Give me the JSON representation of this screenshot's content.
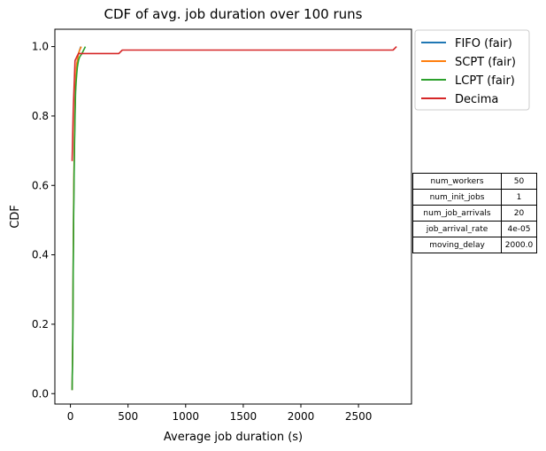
{
  "chart_data": {
    "type": "line",
    "title": "CDF of avg. job duration over 100 runs",
    "xlabel": "Average job duration (s)",
    "ylabel": "CDF",
    "xlim": [
      -135,
      2960
    ],
    "ylim": [
      -0.03,
      1.05
    ],
    "xticks": [
      0,
      500,
      1000,
      1500,
      2000,
      2500
    ],
    "yticks": [
      0.0,
      0.2,
      0.4,
      0.6,
      0.8,
      1.0
    ],
    "ytick_labels": [
      "0.0",
      "0.2",
      "0.4",
      "0.6",
      "0.8",
      "1.0"
    ],
    "grid": false,
    "legend_position": "outside top-right",
    "series": [
      {
        "name": "FIFO (fair)",
        "color": "#1f77b4",
        "x": [
          15,
          20,
          25,
          28,
          30,
          35,
          40,
          45,
          50,
          55,
          60,
          65,
          70,
          80,
          90
        ],
        "y": [
          0.01,
          0.15,
          0.4,
          0.52,
          0.6,
          0.72,
          0.82,
          0.88,
          0.92,
          0.94,
          0.96,
          0.97,
          0.98,
          0.99,
          1.0
        ]
      },
      {
        "name": "SCPT (fair)",
        "color": "#ff7f0e",
        "x": [
          15,
          20,
          25,
          28,
          30,
          35,
          40,
          45,
          50,
          55,
          60,
          65,
          70,
          80,
          95
        ],
        "y": [
          0.01,
          0.16,
          0.42,
          0.54,
          0.62,
          0.74,
          0.83,
          0.89,
          0.93,
          0.95,
          0.96,
          0.97,
          0.98,
          0.99,
          1.0
        ]
      },
      {
        "name": "LCPT (fair)",
        "color": "#2ca02c",
        "x": [
          15,
          20,
          25,
          28,
          30,
          35,
          40,
          45,
          50,
          55,
          60,
          65,
          70,
          80,
          100,
          130
        ],
        "y": [
          0.01,
          0.14,
          0.38,
          0.5,
          0.58,
          0.7,
          0.8,
          0.87,
          0.9,
          0.92,
          0.94,
          0.95,
          0.96,
          0.97,
          0.98,
          1.0
        ]
      },
      {
        "name": "Decima",
        "color": "#d62728",
        "x": [
          15,
          25,
          40,
          55,
          70,
          80,
          100,
          200,
          300,
          400,
          420,
          450,
          1000,
          2000,
          2600,
          2800,
          2830
        ],
        "y": [
          0.67,
          0.82,
          0.96,
          0.97,
          0.98,
          0.98,
          0.98,
          0.98,
          0.98,
          0.98,
          0.98,
          0.99,
          0.99,
          0.99,
          0.99,
          0.99,
          1.0
        ]
      }
    ]
  },
  "params_table": [
    {
      "key": "num_workers",
      "value": "50"
    },
    {
      "key": "num_init_jobs",
      "value": "1"
    },
    {
      "key": "num_job_arrivals",
      "value": "20"
    },
    {
      "key": "job_arrival_rate",
      "value": "4e-05"
    },
    {
      "key": "moving_delay",
      "value": "2000.0"
    }
  ]
}
